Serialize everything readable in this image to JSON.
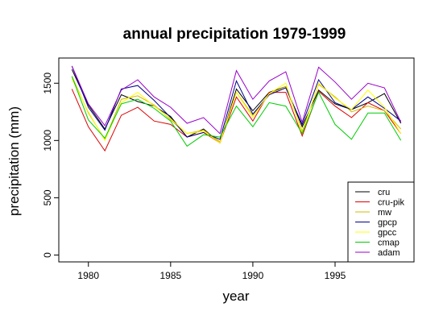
{
  "chart_data": {
    "type": "line",
    "title": "annual precipitation 1979-1999",
    "xlabel": "year",
    "ylabel": "precipitation (mm)",
    "xlim": [
      1978.2,
      1999.8
    ],
    "ylim": [
      -60,
      1720
    ],
    "x_ticks": [
      1980,
      1985,
      1990,
      1995
    ],
    "y_ticks": [
      0,
      500,
      1000,
      1500
    ],
    "grid": false,
    "legend_position": "bottom-right",
    "x": [
      1979,
      1980,
      1981,
      1982,
      1983,
      1984,
      1985,
      1986,
      1987,
      1988,
      1989,
      1990,
      1991,
      1992,
      1993,
      1994,
      1995,
      1996,
      1997,
      1998,
      1999
    ],
    "series": [
      {
        "name": "cru",
        "color": "#000000",
        "values": [
          1620,
          1310,
          1100,
          1400,
          1340,
          1300,
          1210,
          1030,
          1100,
          980,
          1450,
          1260,
          1420,
          1470,
          1120,
          1440,
          1320,
          1270,
          1330,
          1410,
          1150
        ]
      },
      {
        "name": "cru-pik",
        "color": "#dd0000",
        "values": [
          1450,
          1120,
          910,
          1220,
          1290,
          1170,
          1140,
          1030,
          1070,
          980,
          1380,
          1170,
          1420,
          1420,
          1040,
          1430,
          1300,
          1200,
          1330,
          1260,
          1060
        ]
      },
      {
        "name": "mw",
        "color": "#d4b800",
        "values": [
          1560,
          1240,
          1010,
          1360,
          1390,
          1310,
          1180,
          1060,
          1090,
          990,
          1420,
          1220,
          1410,
          1470,
          1080,
          1490,
          1380,
          1250,
          1300,
          1260,
          1100
        ]
      },
      {
        "name": "gpcp",
        "color": "#00008b",
        "values": [
          1650,
          1290,
          1090,
          1450,
          1480,
          1350,
          1200,
          1030,
          1070,
          1010,
          1520,
          1230,
          1400,
          1460,
          1140,
          1530,
          1330,
          1270,
          1380,
          1280,
          1170
        ]
      },
      {
        "name": "gpcc",
        "color": "#ffff00",
        "values": [
          1540,
          1250,
          1000,
          1330,
          1420,
          1300,
          1190,
          1060,
          1080,
          980,
          1420,
          1200,
          1410,
          1500,
          1060,
          1500,
          1370,
          1270,
          1440,
          1290,
          1060
        ]
      },
      {
        "name": "cmap",
        "color": "#00cc00",
        "values": [
          1560,
          1180,
          1020,
          1320,
          1360,
          1280,
          1170,
          950,
          1050,
          1030,
          1300,
          1120,
          1330,
          1300,
          1060,
          1420,
          1140,
          1010,
          1240,
          1240,
          1000
        ]
      },
      {
        "name": "adam",
        "color": "#9900cc",
        "values": [
          1650,
          1320,
          1130,
          1440,
          1530,
          1380,
          1290,
          1150,
          1200,
          1060,
          1610,
          1360,
          1520,
          1600,
          1160,
          1640,
          1510,
          1360,
          1500,
          1460,
          1160
        ]
      }
    ]
  }
}
